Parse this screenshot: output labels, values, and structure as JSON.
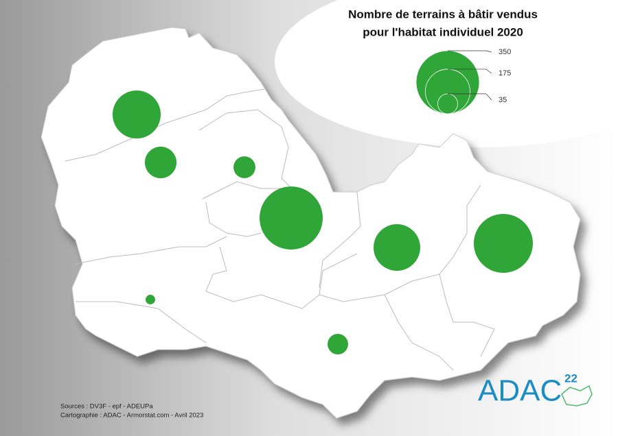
{
  "title_lines": [
    "Nombre de terrains à bâtir vendus",
    "pour l'habitat individuel 2020"
  ],
  "legend": {
    "values": [
      350,
      175,
      35
    ],
    "color": "#2fa637"
  },
  "circles": {
    "values": [
      203,
      88,
      42,
      350,
      191,
      306,
      8,
      37
    ],
    "color": "#2fa637"
  },
  "sources": "Sources : DV3F - epf - ADEUPa",
  "credits": "Cartographie : ADAC - Armorstat.com - Avril 2023",
  "logo": {
    "text": "ADAC",
    "superscript": "22"
  }
}
